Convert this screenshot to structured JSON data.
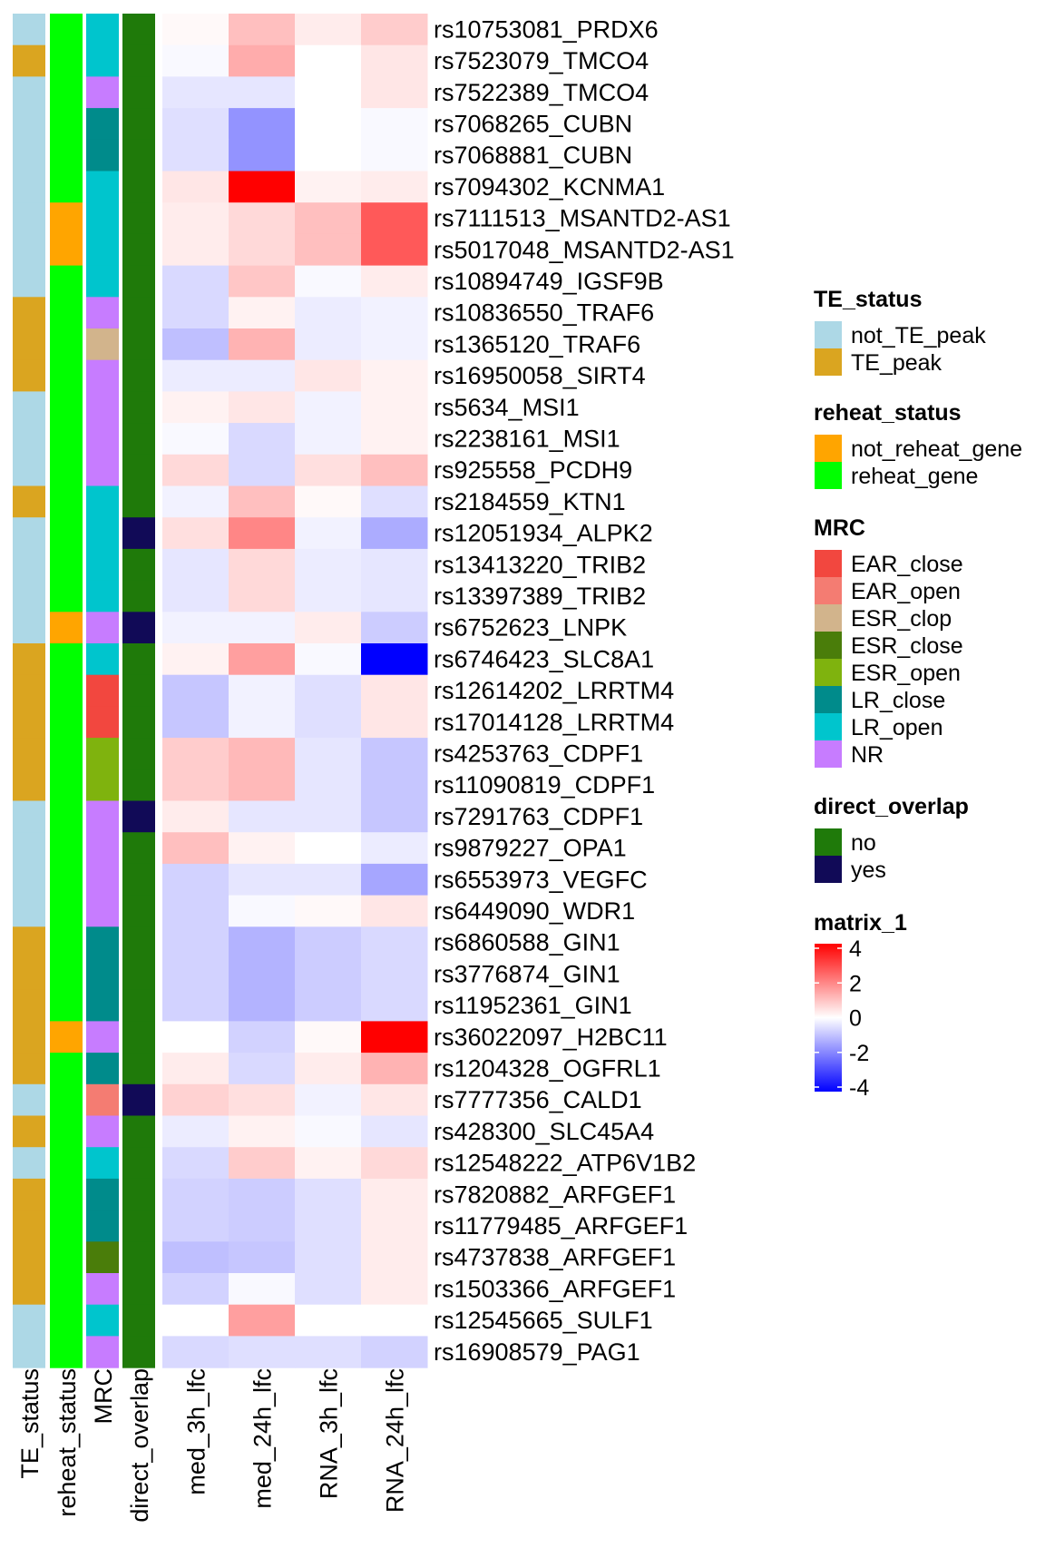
{
  "chart_data": {
    "type": "heatmap",
    "title": "",
    "rows": [
      "rs10753081_PRDX6",
      "rs7523079_TMCO4",
      "rs7522389_TMCO4",
      "rs7068265_CUBN",
      "rs7068881_CUBN",
      "rs7094302_KCNMA1",
      "rs7111513_MSANTD2-AS1",
      "rs5017048_MSANTD2-AS1",
      "rs10894749_IGSF9B",
      "rs10836550_TRAF6",
      "rs1365120_TRAF6",
      "rs16950058_SIRT4",
      "rs5634_MSI1",
      "rs2238161_MSI1",
      "rs925558_PCDH9",
      "rs2184559_KTN1",
      "rs12051934_ALPK2",
      "rs13413220_TRIB2",
      "rs13397389_TRIB2",
      "rs6752623_LNPK",
      "rs6746423_SLC8A1",
      "rs12614202_LRRTM4",
      "rs17014128_LRRTM4",
      "rs4253763_CDPF1",
      "rs11090819_CDPF1",
      "rs7291763_CDPF1",
      "rs9879227_OPA1",
      "rs6553973_VEGFC",
      "rs6449090_WDR1",
      "rs6860588_GIN1",
      "rs3776874_GIN1",
      "rs11952361_GIN1",
      "rs36022097_H2BC11",
      "rs1204328_OGFRL1",
      "rs7777356_CALD1",
      "rs428300_SLC45A4",
      "rs12548222_ATP6V1B2",
      "rs7820882_ARFGEF1",
      "rs11779485_ARFGEF1",
      "rs4737838_ARFGEF1",
      "rs1503366_ARFGEF1",
      "rs12545665_SULF1",
      "rs16908579_PAG1"
    ],
    "annotation_columns": [
      "TE_status",
      "reheat_status",
      "MRC",
      "direct_overlap"
    ],
    "annotations": {
      "TE_status": [
        "not_TE_peak",
        "TE_peak",
        "not_TE_peak",
        "not_TE_peak",
        "not_TE_peak",
        "not_TE_peak",
        "not_TE_peak",
        "not_TE_peak",
        "not_TE_peak",
        "TE_peak",
        "TE_peak",
        "TE_peak",
        "not_TE_peak",
        "not_TE_peak",
        "not_TE_peak",
        "TE_peak",
        "not_TE_peak",
        "not_TE_peak",
        "not_TE_peak",
        "not_TE_peak",
        "TE_peak",
        "TE_peak",
        "TE_peak",
        "TE_peak",
        "TE_peak",
        "not_TE_peak",
        "not_TE_peak",
        "not_TE_peak",
        "not_TE_peak",
        "TE_peak",
        "TE_peak",
        "TE_peak",
        "TE_peak",
        "TE_peak",
        "not_TE_peak",
        "TE_peak",
        "not_TE_peak",
        "TE_peak",
        "TE_peak",
        "TE_peak",
        "TE_peak",
        "not_TE_peak",
        "not_TE_peak"
      ],
      "reheat_status": [
        "reheat_gene",
        "reheat_gene",
        "reheat_gene",
        "reheat_gene",
        "reheat_gene",
        "reheat_gene",
        "not_reheat_gene",
        "not_reheat_gene",
        "reheat_gene",
        "reheat_gene",
        "reheat_gene",
        "reheat_gene",
        "reheat_gene",
        "reheat_gene",
        "reheat_gene",
        "reheat_gene",
        "reheat_gene",
        "reheat_gene",
        "reheat_gene",
        "not_reheat_gene",
        "reheat_gene",
        "reheat_gene",
        "reheat_gene",
        "reheat_gene",
        "reheat_gene",
        "reheat_gene",
        "reheat_gene",
        "reheat_gene",
        "reheat_gene",
        "reheat_gene",
        "reheat_gene",
        "reheat_gene",
        "not_reheat_gene",
        "reheat_gene",
        "reheat_gene",
        "reheat_gene",
        "reheat_gene",
        "reheat_gene",
        "reheat_gene",
        "reheat_gene",
        "reheat_gene",
        "reheat_gene",
        "reheat_gene"
      ],
      "MRC": [
        "LR_open",
        "LR_open",
        "NR",
        "LR_close",
        "LR_close",
        "LR_open",
        "LR_open",
        "LR_open",
        "LR_open",
        "NR",
        "ESR_clop",
        "NR",
        "NR",
        "NR",
        "NR",
        "LR_open",
        "LR_open",
        "LR_open",
        "LR_open",
        "NR",
        "LR_open",
        "EAR_close",
        "EAR_close",
        "ESR_open",
        "ESR_open",
        "NR",
        "NR",
        "NR",
        "NR",
        "LR_close",
        "LR_close",
        "LR_close",
        "NR",
        "LR_close",
        "EAR_open",
        "NR",
        "LR_open",
        "LR_close",
        "LR_close",
        "ESR_close",
        "NR",
        "LR_open",
        "NR"
      ],
      "direct_overlap": [
        "no",
        "no",
        "no",
        "no",
        "no",
        "no",
        "no",
        "no",
        "no",
        "no",
        "no",
        "no",
        "no",
        "no",
        "no",
        "no",
        "yes",
        "no",
        "no",
        "yes",
        "no",
        "no",
        "no",
        "no",
        "no",
        "yes",
        "no",
        "no",
        "no",
        "no",
        "no",
        "no",
        "no",
        "no",
        "yes",
        "no",
        "no",
        "no",
        "no",
        "no",
        "no",
        "no",
        "no"
      ]
    },
    "columns": [
      "med_3h_lfc",
      "med_24h_lfc",
      "RNA_3h_lfc",
      "RNA_24h_lfc"
    ],
    "values": [
      [
        0.1,
        1.0,
        0.3,
        0.8
      ],
      [
        -0.1,
        1.3,
        0.0,
        0.4
      ],
      [
        -0.4,
        -0.4,
        0.0,
        0.4
      ],
      [
        -0.5,
        -1.7,
        0.0,
        -0.1
      ],
      [
        -0.5,
        -1.7,
        0.0,
        -0.1
      ],
      [
        0.4,
        4.0,
        0.2,
        0.3
      ],
      [
        0.3,
        0.6,
        1.0,
        2.6
      ],
      [
        0.3,
        0.6,
        1.0,
        2.6
      ],
      [
        -0.6,
        0.9,
        -0.1,
        0.3
      ],
      [
        -0.6,
        0.2,
        -0.3,
        -0.2
      ],
      [
        -1.0,
        1.2,
        -0.3,
        -0.2
      ],
      [
        -0.3,
        -0.3,
        0.4,
        0.2
      ],
      [
        0.2,
        0.4,
        -0.2,
        0.2
      ],
      [
        -0.1,
        -0.6,
        -0.2,
        0.2
      ],
      [
        0.6,
        -0.6,
        0.5,
        1.0
      ],
      [
        -0.2,
        1.0,
        0.1,
        -0.5
      ],
      [
        0.5,
        1.9,
        -0.2,
        -1.3
      ],
      [
        -0.4,
        0.6,
        -0.3,
        -0.4
      ],
      [
        -0.4,
        0.6,
        -0.3,
        -0.4
      ],
      [
        -0.2,
        -0.2,
        0.3,
        -0.8
      ],
      [
        0.2,
        1.5,
        -0.1,
        -4.0
      ],
      [
        -0.9,
        -0.2,
        -0.5,
        0.4
      ],
      [
        -0.9,
        -0.2,
        -0.5,
        0.4
      ],
      [
        0.8,
        1.1,
        -0.4,
        -0.9
      ],
      [
        0.8,
        1.1,
        -0.4,
        -0.9
      ],
      [
        0.3,
        -0.4,
        -0.4,
        -0.9
      ],
      [
        1.0,
        0.2,
        0.0,
        -0.3
      ],
      [
        -0.7,
        -0.4,
        -0.4,
        -1.4
      ],
      [
        -0.7,
        -0.1,
        0.1,
        0.4
      ],
      [
        -0.7,
        -1.2,
        -0.8,
        -0.6
      ],
      [
        -0.7,
        -1.2,
        -0.8,
        -0.6
      ],
      [
        -0.7,
        -1.2,
        -0.8,
        -0.6
      ],
      [
        0.0,
        -0.7,
        0.1,
        4.0
      ],
      [
        0.3,
        -0.6,
        0.3,
        1.2
      ],
      [
        0.7,
        0.5,
        -0.2,
        0.4
      ],
      [
        -0.3,
        0.2,
        -0.1,
        -0.4
      ],
      [
        -0.6,
        0.8,
        0.2,
        0.6
      ],
      [
        -0.7,
        -0.8,
        -0.5,
        0.3
      ],
      [
        -0.7,
        -0.8,
        -0.5,
        0.3
      ],
      [
        -1.0,
        -0.9,
        -0.5,
        0.3
      ],
      [
        -0.7,
        -0.1,
        -0.5,
        0.3
      ],
      [
        0.0,
        1.5,
        0.0,
        0.0
      ],
      [
        -0.6,
        -0.5,
        -0.5,
        -0.7
      ]
    ],
    "colorbar": {
      "label": "matrix_1",
      "range": [
        -4,
        4
      ],
      "ticks": [
        "4",
        "2",
        "0",
        "-2",
        "-4"
      ],
      "tick_values": [
        4,
        2,
        0,
        -2,
        -4
      ],
      "low_color": "#0000ff",
      "mid_color": "#ffffff",
      "high_color": "#ff0000"
    },
    "legends": [
      {
        "title": "TE_status",
        "items": [
          {
            "label": "not_TE_peak",
            "color": "#add8e6"
          },
          {
            "label": "TE_peak",
            "color": "#daa520"
          }
        ]
      },
      {
        "title": "reheat_status",
        "items": [
          {
            "label": "not_reheat_gene",
            "color": "#ffa500"
          },
          {
            "label": "reheat_gene",
            "color": "#00ff00"
          }
        ]
      },
      {
        "title": "MRC",
        "items": [
          {
            "label": "EAR_close",
            "color": "#f2473f"
          },
          {
            "label": "EAR_open",
            "color": "#f47c72"
          },
          {
            "label": "ESR_clop",
            "color": "#d2b48c"
          },
          {
            "label": "ESR_close",
            "color": "#4a7d0a"
          },
          {
            "label": "ESR_open",
            "color": "#7fb30e"
          },
          {
            "label": "LR_close",
            "color": "#008b8b"
          },
          {
            "label": "LR_open",
            "color": "#00c5cd"
          },
          {
            "label": "NR",
            "color": "#c77cff"
          }
        ]
      },
      {
        "title": "direct_overlap",
        "items": [
          {
            "label": "no",
            "color": "#1f7a0a"
          },
          {
            "label": "yes",
            "color": "#110a57"
          }
        ]
      }
    ]
  }
}
